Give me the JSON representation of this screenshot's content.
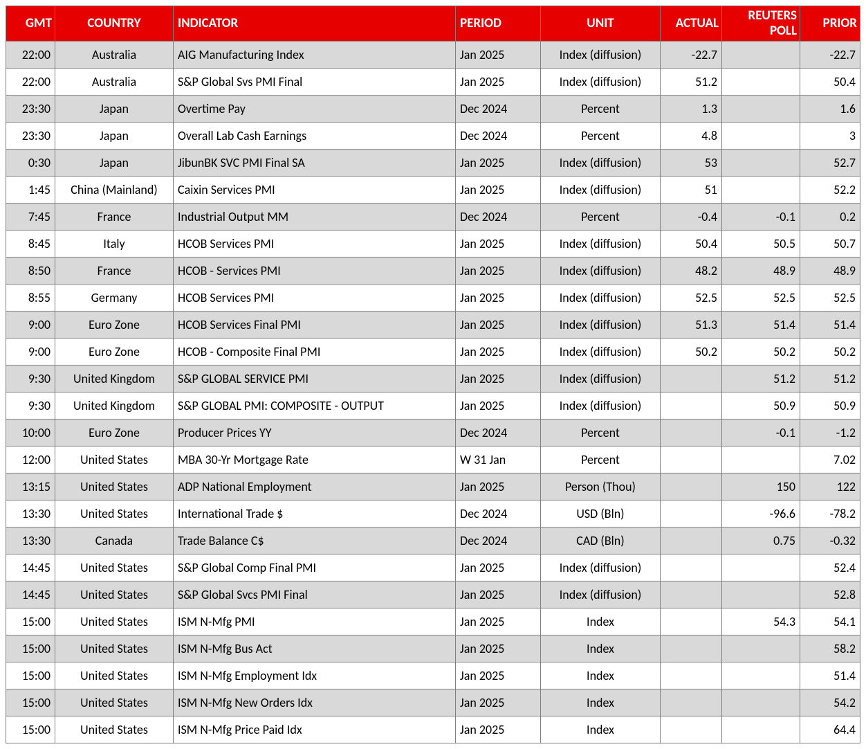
{
  "table": {
    "headers": {
      "gmt": "GMT",
      "country": "COUNTRY",
      "indicator": "INDICATOR",
      "period": "PERIOD",
      "unit": "UNIT",
      "actual": "ACTUAL",
      "poll": "REUTERS POLL",
      "prior": "PRIOR"
    },
    "header_bg": "#e60000",
    "header_fg": "#ffffff",
    "row_odd_bg": "#d9d9d9",
    "row_even_bg": "#ffffff",
    "border_color": "#7f7f7f",
    "rows": [
      {
        "gmt": "22:00",
        "country": "Australia",
        "indicator": "AIG Manufacturing Index",
        "period": "Jan 2025",
        "unit": "Index (diffusion)",
        "actual": "-22.7",
        "poll": "",
        "prior": "-22.7"
      },
      {
        "gmt": "22:00",
        "country": "Australia",
        "indicator": "S&P Global Svs PMI Final",
        "period": "Jan 2025",
        "unit": "Index (diffusion)",
        "actual": "51.2",
        "poll": "",
        "prior": "50.4"
      },
      {
        "gmt": "23:30",
        "country": "Japan",
        "indicator": "Overtime Pay",
        "period": "Dec 2024",
        "unit": "Percent",
        "actual": "1.3",
        "poll": "",
        "prior": "1.6"
      },
      {
        "gmt": "23:30",
        "country": "Japan",
        "indicator": "Overall Lab Cash Earnings",
        "period": "Dec 2024",
        "unit": "Percent",
        "actual": "4.8",
        "poll": "",
        "prior": "3"
      },
      {
        "gmt": "0:30",
        "country": "Japan",
        "indicator": "JibunBK SVC PMI Final SA",
        "period": "Jan 2025",
        "unit": "Index (diffusion)",
        "actual": "53",
        "poll": "",
        "prior": "52.7"
      },
      {
        "gmt": "1:45",
        "country": "China (Mainland)",
        "indicator": "Caixin Services PMI",
        "period": "Jan 2025",
        "unit": "Index (diffusion)",
        "actual": "51",
        "poll": "",
        "prior": "52.2"
      },
      {
        "gmt": "7:45",
        "country": "France",
        "indicator": "Industrial Output MM",
        "period": "Dec 2024",
        "unit": "Percent",
        "actual": "-0.4",
        "poll": "-0.1",
        "prior": "0.2"
      },
      {
        "gmt": "8:45",
        "country": "Italy",
        "indicator": "HCOB Services PMI",
        "period": "Jan 2025",
        "unit": "Index (diffusion)",
        "actual": "50.4",
        "poll": "50.5",
        "prior": "50.7"
      },
      {
        "gmt": "8:50",
        "country": "France",
        "indicator": "HCOB - Services PMI",
        "period": "Jan 2025",
        "unit": "Index (diffusion)",
        "actual": "48.2",
        "poll": "48.9",
        "prior": "48.9"
      },
      {
        "gmt": "8:55",
        "country": "Germany",
        "indicator": "HCOB Services PMI",
        "period": "Jan 2025",
        "unit": "Index (diffusion)",
        "actual": "52.5",
        "poll": "52.5",
        "prior": "52.5"
      },
      {
        "gmt": "9:00",
        "country": "Euro Zone",
        "indicator": "HCOB Services Final PMI",
        "period": "Jan 2025",
        "unit": "Index (diffusion)",
        "actual": "51.3",
        "poll": "51.4",
        "prior": "51.4"
      },
      {
        "gmt": "9:00",
        "country": "Euro Zone",
        "indicator": "HCOB - Composite Final PMI",
        "period": "Jan 2025",
        "unit": "Index (diffusion)",
        "actual": "50.2",
        "poll": "50.2",
        "prior": "50.2"
      },
      {
        "gmt": "9:30",
        "country": "United Kingdom",
        "indicator": "S&P GLOBAL SERVICE PMI",
        "period": "Jan 2025",
        "unit": "Index (diffusion)",
        "actual": "",
        "poll": "51.2",
        "prior": "51.2"
      },
      {
        "gmt": "9:30",
        "country": "United Kingdom",
        "indicator": "S&P GLOBAL PMI: COMPOSITE - OUTPUT",
        "period": "Jan 2025",
        "unit": "Index (diffusion)",
        "actual": "",
        "poll": "50.9",
        "prior": "50.9"
      },
      {
        "gmt": "10:00",
        "country": "Euro Zone",
        "indicator": "Producer Prices YY",
        "period": "Dec 2024",
        "unit": "Percent",
        "actual": "",
        "poll": "-0.1",
        "prior": "-1.2"
      },
      {
        "gmt": "12:00",
        "country": "United States",
        "indicator": "MBA 30-Yr Mortgage Rate",
        "period": "W 31 Jan",
        "unit": "Percent",
        "actual": "",
        "poll": "",
        "prior": "7.02"
      },
      {
        "gmt": "13:15",
        "country": "United States",
        "indicator": "ADP National Employment",
        "period": "Jan 2025",
        "unit": "Person (Thou)",
        "actual": "",
        "poll": "150",
        "prior": "122"
      },
      {
        "gmt": "13:30",
        "country": "United States",
        "indicator": "International Trade $",
        "period": "Dec 2024",
        "unit": "USD (Bln)",
        "actual": "",
        "poll": "-96.6",
        "prior": "-78.2"
      },
      {
        "gmt": "13:30",
        "country": "Canada",
        "indicator": "Trade Balance C$",
        "period": "Dec 2024",
        "unit": "CAD (Bln)",
        "actual": "",
        "poll": "0.75",
        "prior": "-0.32"
      },
      {
        "gmt": "14:45",
        "country": "United States",
        "indicator": "S&P Global Comp Final PMI",
        "period": "Jan 2025",
        "unit": "Index (diffusion)",
        "actual": "",
        "poll": "",
        "prior": "52.4"
      },
      {
        "gmt": "14:45",
        "country": "United States",
        "indicator": "S&P Global Svcs PMI Final",
        "period": "Jan 2025",
        "unit": "Index (diffusion)",
        "actual": "",
        "poll": "",
        "prior": "52.8"
      },
      {
        "gmt": "15:00",
        "country": "United States",
        "indicator": "ISM N-Mfg PMI",
        "period": "Jan 2025",
        "unit": "Index",
        "actual": "",
        "poll": "54.3",
        "prior": "54.1"
      },
      {
        "gmt": "15:00",
        "country": "United States",
        "indicator": "ISM N-Mfg Bus Act",
        "period": "Jan 2025",
        "unit": "Index",
        "actual": "",
        "poll": "",
        "prior": "58.2"
      },
      {
        "gmt": "15:00",
        "country": "United States",
        "indicator": "ISM N-Mfg Employment Idx",
        "period": "Jan 2025",
        "unit": "Index",
        "actual": "",
        "poll": "",
        "prior": "51.4"
      },
      {
        "gmt": "15:00",
        "country": "United States",
        "indicator": "ISM N-Mfg New Orders Idx",
        "period": "Jan 2025",
        "unit": "Index",
        "actual": "",
        "poll": "",
        "prior": "54.2"
      },
      {
        "gmt": "15:00",
        "country": "United States",
        "indicator": "ISM N-Mfg Price Paid Idx",
        "period": "Jan 2025",
        "unit": "Index",
        "actual": "",
        "poll": "",
        "prior": "64.4"
      }
    ]
  }
}
